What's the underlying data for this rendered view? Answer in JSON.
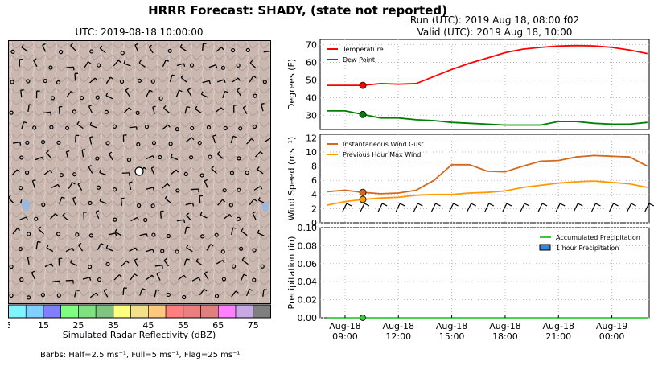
{
  "header": {
    "title": "HRRR Forecast: SHADY, (state not reported)",
    "run": "Run (UTC): 2019 Aug 18, 08:00 f02",
    "valid": "Valid (UTC): 2019 Aug 18, 10:00"
  },
  "map": {
    "title": "UTC: 2019-08-18 10:00:00",
    "colorbar": {
      "label": "Simulated Radar Reflectivity (dBZ)",
      "ticks": [
        "5",
        "15",
        "25",
        "35",
        "45",
        "55",
        "65",
        "75"
      ],
      "colors": [
        "#7ff4ff",
        "#7fd0ff",
        "#7f7fff",
        "#7fff7f",
        "#7fe07f",
        "#7fc47f",
        "#ffff7f",
        "#f3e08a",
        "#ffc87f",
        "#ff7f7f",
        "#eb7f7f",
        "#df7f7f",
        "#ff7fff",
        "#c9a8e6",
        "#7f7f7f"
      ]
    },
    "barb_note": "Barbs: Half=2.5 ms⁻¹, Full=5 ms⁻¹, Flag=25 ms⁻¹"
  },
  "chart_data": [
    {
      "type": "line",
      "ylabel": "Degrees (F)",
      "ylim": [
        22,
        73
      ],
      "yticks": [
        "30",
        "40",
        "50",
        "60",
        "70"
      ],
      "x": [
        "2019-08-18 08:00",
        "09:00",
        "10:00",
        "11:00",
        "12:00",
        "13:00",
        "14:00",
        "15:00",
        "16:00",
        "17:00",
        "18:00",
        "19:00",
        "20:00",
        "21:00",
        "22:00",
        "23:00",
        "2019-08-19 00:00",
        "01:00",
        "02:00"
      ],
      "series": [
        {
          "name": "Temperature",
          "color": "#ff0000",
          "values": [
            47,
            47,
            47,
            48,
            47.7,
            48,
            52,
            56,
            59.5,
            62.5,
            65.5,
            67.5,
            68.5,
            69.2,
            69.5,
            69.3,
            68.5,
            67,
            65
          ]
        },
        {
          "name": "Dew Point",
          "color": "#008000",
          "values": [
            32.5,
            32.5,
            30.5,
            28.5,
            28.5,
            27.5,
            27,
            26,
            25.5,
            25,
            24.5,
            24.5,
            24.5,
            26.5,
            26.5,
            25.5,
            25,
            25,
            26
          ]
        }
      ],
      "marker_x": "10:00",
      "legend": "top-left",
      "grid": true
    },
    {
      "type": "line",
      "ylabel": "Wind Speed (ms⁻¹)",
      "ylim": [
        0,
        12.5
      ],
      "yticks": [
        "0",
        "2",
        "4",
        "6",
        "8",
        "10",
        "12"
      ],
      "x": [
        "2019-08-18 08:00",
        "09:00",
        "10:00",
        "11:00",
        "12:00",
        "13:00",
        "14:00",
        "15:00",
        "16:00",
        "17:00",
        "18:00",
        "19:00",
        "20:00",
        "21:00",
        "22:00",
        "23:00",
        "2019-08-19 00:00",
        "01:00",
        "02:00"
      ],
      "series": [
        {
          "name": "Instantaneous Wind Gust",
          "color": "#d2691e",
          "values": [
            4.4,
            4.6,
            4.3,
            4.1,
            4.2,
            4.6,
            6.0,
            8.2,
            8.2,
            7.3,
            7.2,
            8.0,
            8.7,
            8.8,
            9.3,
            9.5,
            9.4,
            9.3,
            8.0
          ]
        },
        {
          "name": "Previous Hour Max Wind",
          "color": "#ff9900",
          "values": [
            2.5,
            3.0,
            3.3,
            3.5,
            3.6,
            3.9,
            4.0,
            4.0,
            4.2,
            4.3,
            4.5,
            5.0,
            5.3,
            5.6,
            5.8,
            5.9,
            5.7,
            5.5,
            5.0
          ]
        }
      ],
      "marker_x": "10:00",
      "legend": "top-left",
      "grid": true
    },
    {
      "type": "bar",
      "ylabel": "Precipitation (in)",
      "ylim": [
        0,
        0.1
      ],
      "yticks": [
        "0.00",
        "0.02",
        "0.04",
        "0.06",
        "0.08",
        "0.10"
      ],
      "x": [
        "2019-08-18 08:00",
        "09:00",
        "10:00",
        "11:00",
        "12:00",
        "13:00",
        "14:00",
        "15:00",
        "16:00",
        "17:00",
        "18:00",
        "19:00",
        "20:00",
        "21:00",
        "22:00",
        "23:00",
        "2019-08-19 00:00",
        "01:00",
        "02:00"
      ],
      "series": [
        {
          "name": "Accumulated Precipitation",
          "color": "#33cc33",
          "values": [
            0,
            0,
            0,
            0,
            0,
            0,
            0,
            0,
            0,
            0,
            0,
            0,
            0,
            0,
            0,
            0,
            0,
            0,
            0
          ]
        },
        {
          "name": "1 hour Precipitation",
          "color": "#3388dd",
          "values": [
            0,
            0,
            0,
            0,
            0,
            0,
            0,
            0,
            0,
            0,
            0,
            0,
            0,
            0,
            0,
            0,
            0,
            0,
            0
          ]
        }
      ],
      "xticks": [
        "Aug-18\n09:00",
        "Aug-18\n12:00",
        "Aug-18\n15:00",
        "Aug-18\n18:00",
        "Aug-18\n21:00",
        "Aug-19\n00:00"
      ],
      "legend": "top-right",
      "grid": true
    }
  ]
}
